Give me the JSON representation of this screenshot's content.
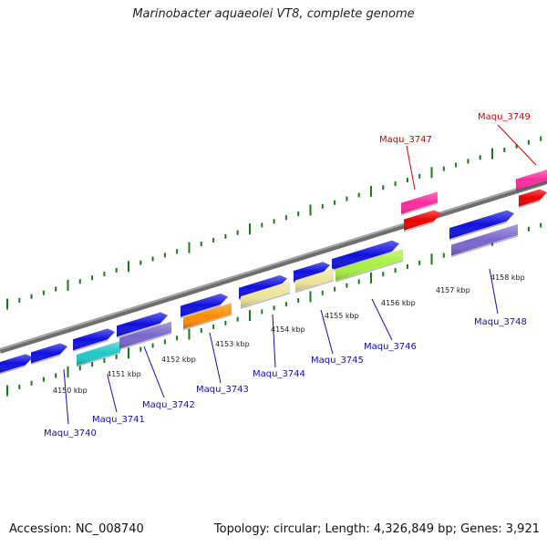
{
  "title": "Marinobacter aquaeolei VT8, complete genome",
  "footer": {
    "accession": "Accession: NC_008740",
    "info": "Topology: circular; Length: 4,326,849 bp; Genes: 3,921"
  },
  "colors": {
    "backbone": "#808080",
    "tick": "#1a7a1a",
    "label_blue": "#1010b0",
    "label_red": "#cc0000",
    "gene_blue": "#1010e0",
    "gene_cyan": "#20c8c8",
    "gene_purple": "#7a66cc",
    "gene_orange": "#ff8c00",
    "gene_khaki": "#ece49a",
    "gene_lime": "#a8f040",
    "gene_pink": "#ff2aa0",
    "gene_red": "#ee0000"
  },
  "scale_labels": [
    "4150 kbp",
    "4151 kbp",
    "4152 kbp",
    "4153 kbp",
    "4154 kbp",
    "4155 kbp",
    "4156 kbp",
    "4157 kbp",
    "4158 kbp"
  ],
  "gene_labels": [
    {
      "text": "Maqu_3740",
      "color": "blue"
    },
    {
      "text": "Maqu_3741",
      "color": "blue"
    },
    {
      "text": "Maqu_3742",
      "color": "blue"
    },
    {
      "text": "Maqu_3743",
      "color": "blue"
    },
    {
      "text": "Maqu_3744",
      "color": "blue"
    },
    {
      "text": "Maqu_3745",
      "color": "blue"
    },
    {
      "text": "Maqu_3746",
      "color": "blue"
    },
    {
      "text": "Maqu_3747",
      "color": "red"
    },
    {
      "text": "Maqu_3748",
      "color": "blue"
    },
    {
      "text": "Maqu_3749",
      "color": "red"
    }
  ]
}
